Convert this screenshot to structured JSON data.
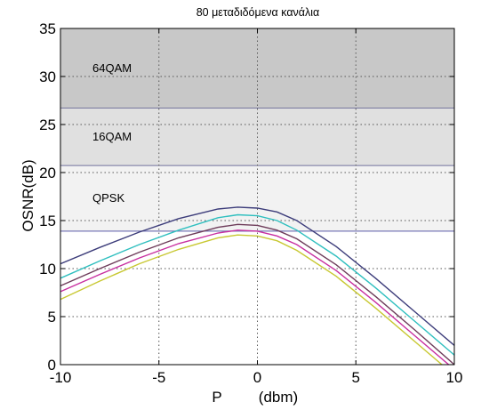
{
  "chart_data": {
    "type": "line",
    "title": "80 μεταδιδόμενα κανάλια",
    "xlabel": "P",
    "xlabel_unit": "(dbm)",
    "ylabel": "OSNR(dB)",
    "xlim": [
      -10,
      10
    ],
    "ylim": [
      0,
      35
    ],
    "xticks": [
      -10,
      -5,
      0,
      5,
      10
    ],
    "yticks": [
      0,
      5,
      10,
      15,
      20,
      25,
      30,
      35
    ],
    "grid": true,
    "regions": [
      {
        "label": "64QAM",
        "y_from": 26.7,
        "y_to": 35,
        "color": "#c8c8c8",
        "border": "#3a3a7a"
      },
      {
        "label": "16QAM",
        "y_from": 20.7,
        "y_to": 26.7,
        "color": "#e0e0e0",
        "border": "#3a3a7a"
      },
      {
        "label": "QPSK",
        "y_from": 13.9,
        "y_to": 20.7,
        "color": "#f2f2f2",
        "border": "#7a7ab8"
      }
    ],
    "series": [
      {
        "color": "#3c3c7a",
        "x": [
          -10,
          -8,
          -6,
          -4,
          -2,
          -1,
          0,
          1,
          2,
          4,
          6,
          8,
          10
        ],
        "values": [
          10.5,
          12.2,
          13.8,
          15.2,
          16.2,
          16.4,
          16.3,
          15.9,
          15.0,
          12.3,
          9.0,
          5.5,
          2.0
        ]
      },
      {
        "color": "#2fbfbf",
        "x": [
          -10,
          -8,
          -6,
          -4,
          -2,
          -1,
          0,
          1,
          2,
          4,
          6,
          8,
          10
        ],
        "values": [
          9.0,
          10.8,
          12.5,
          14.0,
          15.3,
          15.6,
          15.5,
          15.0,
          14.0,
          11.3,
          8.0,
          4.5,
          1.0
        ]
      },
      {
        "color": "#6e3c5a",
        "x": [
          -10,
          -8,
          -6,
          -4,
          -2,
          -1,
          0,
          1,
          2,
          4,
          6,
          8,
          10
        ],
        "values": [
          8.2,
          10.0,
          11.7,
          13.2,
          14.3,
          14.6,
          14.5,
          14.0,
          13.1,
          10.4,
          7.1,
          3.6,
          0.0
        ]
      },
      {
        "color": "#c82fa0",
        "x": [
          -10,
          -8,
          -6,
          -4,
          -2,
          -1,
          0,
          1,
          2,
          4,
          6,
          8,
          10
        ],
        "values": [
          7.6,
          9.4,
          11.1,
          12.6,
          13.7,
          14.0,
          13.9,
          13.4,
          12.5,
          9.8,
          6.5,
          3.0,
          -0.5
        ]
      },
      {
        "color": "#c8c832",
        "x": [
          -10,
          -8,
          -6,
          -4,
          -2,
          -1,
          0,
          1,
          2,
          4,
          6,
          8,
          10
        ],
        "values": [
          6.8,
          8.7,
          10.5,
          12.0,
          13.2,
          13.5,
          13.4,
          12.9,
          11.9,
          9.2,
          5.9,
          2.4,
          -1.1
        ]
      }
    ]
  }
}
